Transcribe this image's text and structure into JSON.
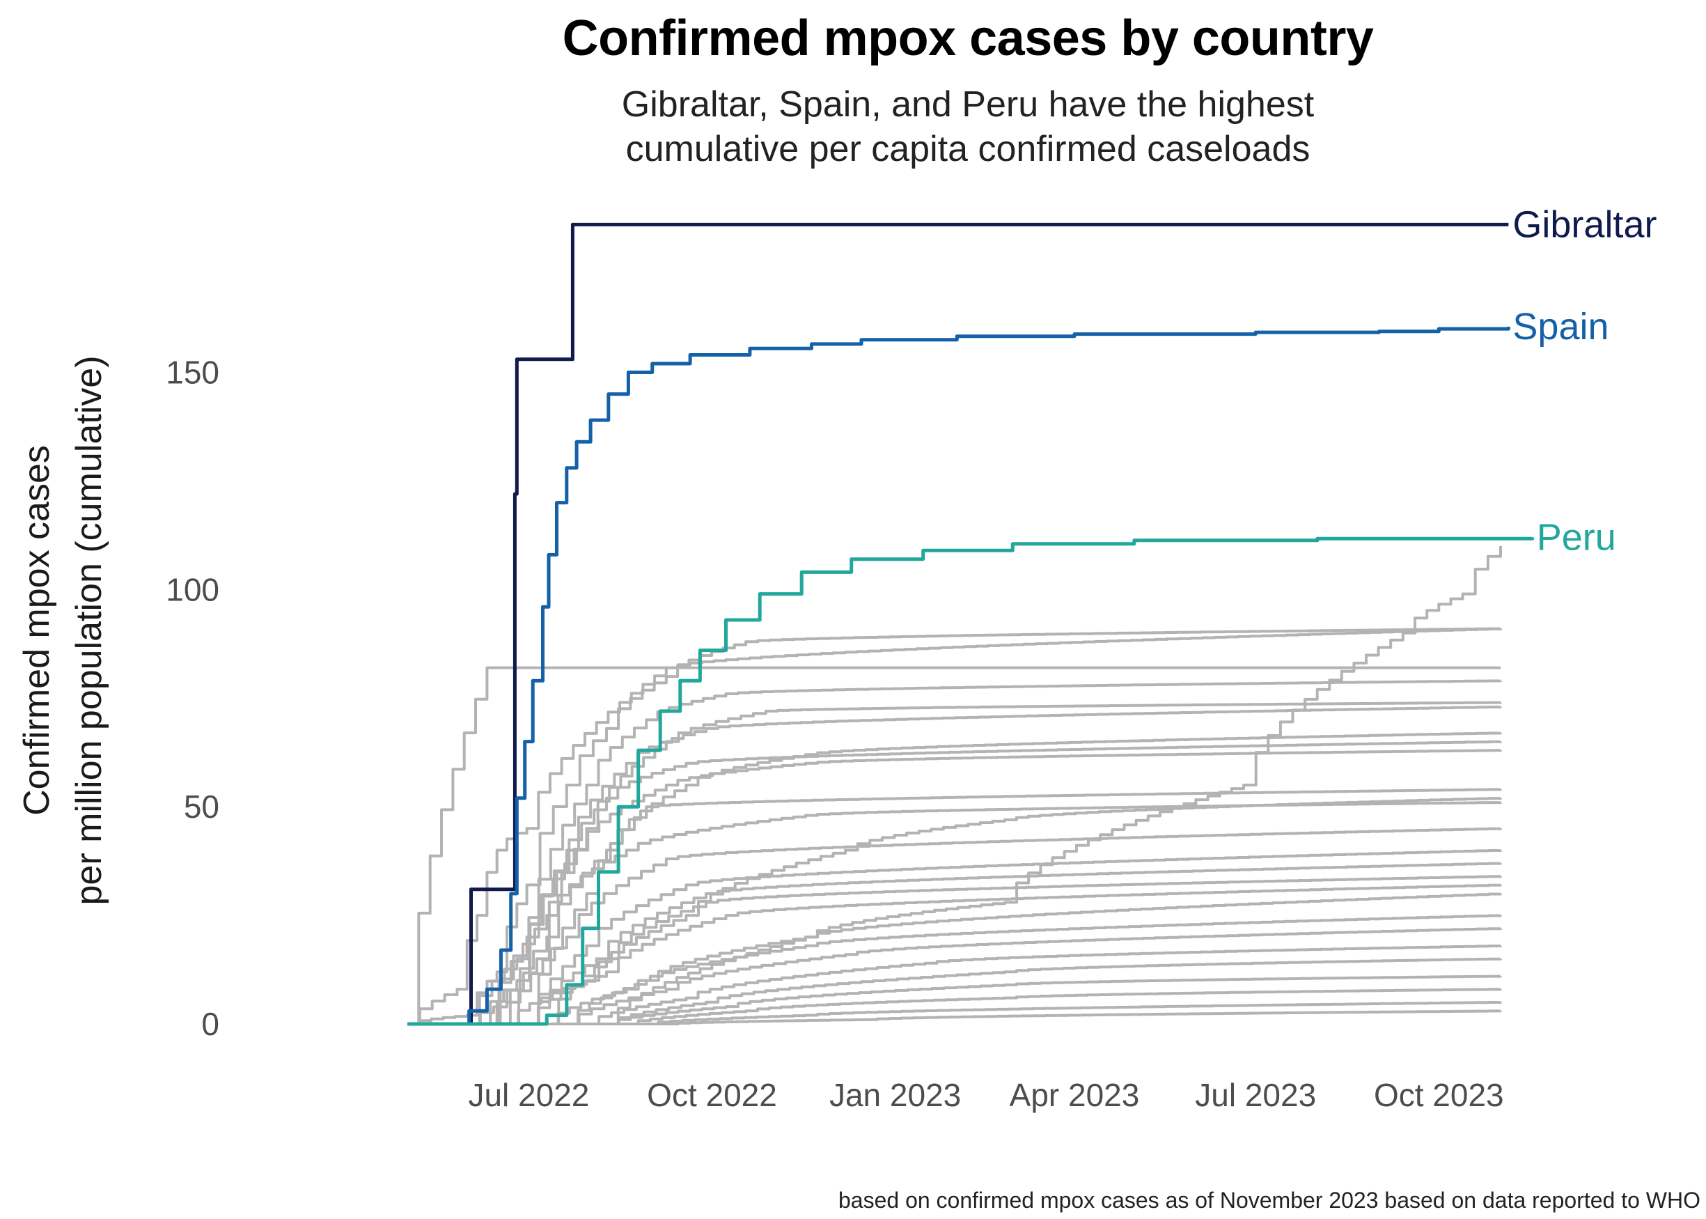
{
  "chart_data": {
    "type": "line",
    "title": "Confirmed mpox cases by country",
    "subtitle": [
      "Gibraltar, Spain, and Peru have the highest",
      "cumulative per capita confirmed caseloads"
    ],
    "xlabel": "",
    "ylabel": [
      "Confirmed mpox cases",
      "per million population (cumulative)"
    ],
    "xlim": [
      "2022-05-01",
      "2023-11-15"
    ],
    "ylim": [
      0,
      190
    ],
    "y_ticks": [
      0,
      50,
      100,
      150
    ],
    "x_ticks": [
      {
        "date": "2022-07-01",
        "label": "Jul 2022"
      },
      {
        "date": "2022-10-01",
        "label": "Oct 2022"
      },
      {
        "date": "2023-01-01",
        "label": "Jan 2023"
      },
      {
        "date": "2023-04-01",
        "label": "Apr 2023"
      },
      {
        "date": "2023-07-01",
        "label": "Jul 2023"
      },
      {
        "date": "2023-10-01",
        "label": "Oct 2023"
      }
    ],
    "grid": false,
    "legend": "direct labels at line ends",
    "highlight_series": [
      {
        "name": "Gibraltar",
        "color": "#0f1a4d",
        "points": [
          [
            "2022-05-31",
            0
          ],
          [
            "2022-06-02",
            0
          ],
          [
            "2022-06-02",
            31
          ],
          [
            "2022-06-24",
            31
          ],
          [
            "2022-06-24",
            122
          ],
          [
            "2022-06-25",
            122
          ],
          [
            "2022-06-25",
            153
          ],
          [
            "2022-07-23",
            153
          ],
          [
            "2022-07-23",
            184
          ],
          [
            "2023-11-05",
            184
          ]
        ]
      },
      {
        "name": "Spain",
        "color": "#1461a8",
        "points": [
          [
            "2022-05-01",
            0
          ],
          [
            "2022-05-20",
            0
          ],
          [
            "2022-06-01",
            3
          ],
          [
            "2022-06-10",
            8
          ],
          [
            "2022-06-17",
            17
          ],
          [
            "2022-06-22",
            30
          ],
          [
            "2022-06-25",
            52
          ],
          [
            "2022-06-29",
            65
          ],
          [
            "2022-07-03",
            79
          ],
          [
            "2022-07-08",
            96
          ],
          [
            "2022-07-11",
            108
          ],
          [
            "2022-07-15",
            120
          ],
          [
            "2022-07-20",
            128
          ],
          [
            "2022-07-25",
            134
          ],
          [
            "2022-08-01",
            139
          ],
          [
            "2022-08-10",
            145
          ],
          [
            "2022-08-20",
            150
          ],
          [
            "2022-09-01",
            152
          ],
          [
            "2022-09-20",
            154
          ],
          [
            "2022-10-20",
            155.5
          ],
          [
            "2022-11-20",
            156.5
          ],
          [
            "2022-12-15",
            157.5
          ],
          [
            "2023-02-01",
            158.3
          ],
          [
            "2023-04-01",
            158.8
          ],
          [
            "2023-07-01",
            159.2
          ],
          [
            "2023-09-01",
            159.4
          ],
          [
            "2023-10-01",
            160
          ],
          [
            "2023-11-05",
            160.5
          ]
        ]
      },
      {
        "name": "Peru",
        "color": "#22a79c",
        "points": [
          [
            "2022-05-01",
            0
          ],
          [
            "2022-07-01",
            0
          ],
          [
            "2022-07-10",
            2
          ],
          [
            "2022-07-20",
            9
          ],
          [
            "2022-07-28",
            22
          ],
          [
            "2022-08-05",
            35
          ],
          [
            "2022-08-15",
            50
          ],
          [
            "2022-08-25",
            63
          ],
          [
            "2022-09-05",
            72
          ],
          [
            "2022-09-15",
            79
          ],
          [
            "2022-09-25",
            86
          ],
          [
            "2022-10-08",
            93
          ],
          [
            "2022-10-25",
            99
          ],
          [
            "2022-11-15",
            104
          ],
          [
            "2022-12-10",
            107
          ],
          [
            "2023-01-15",
            109
          ],
          [
            "2023-03-01",
            110.5
          ],
          [
            "2023-05-01",
            111.3
          ],
          [
            "2023-08-01",
            111.7
          ],
          [
            "2023-11-17",
            112
          ]
        ]
      }
    ],
    "other_series_color": "#b3b3b3",
    "other_series": [
      {
        "values": [
          [
            0,
            0
          ],
          [
            25,
            8
          ],
          [
            35,
            25
          ],
          [
            45,
            40
          ],
          [
            60,
            45
          ],
          [
            130,
            82
          ],
          [
            549,
            91
          ]
        ]
      },
      {
        "values": [
          [
            0,
            0
          ],
          [
            30,
            2
          ],
          [
            45,
            12
          ],
          [
            60,
            32
          ],
          [
            80,
            55
          ],
          [
            100,
            68
          ],
          [
            130,
            80
          ],
          [
            170,
            88
          ],
          [
            549,
            91
          ]
        ]
      },
      {
        "values": [
          [
            0,
            0
          ],
          [
            40,
            0
          ],
          [
            60,
            20
          ],
          [
            90,
            55
          ],
          [
            120,
            70
          ],
          [
            160,
            76
          ],
          [
            549,
            79
          ]
        ]
      },
      {
        "values": [
          [
            0,
            0
          ],
          [
            40,
            0
          ],
          [
            55,
            10
          ],
          [
            80,
            40
          ],
          [
            110,
            60
          ],
          [
            150,
            68
          ],
          [
            549,
            73
          ]
        ]
      },
      {
        "values": [
          [
            0,
            0
          ],
          [
            35,
            0
          ],
          [
            55,
            10
          ],
          [
            75,
            35
          ],
          [
            100,
            52
          ],
          [
            140,
            60
          ],
          [
            549,
            65
          ]
        ]
      },
      {
        "values": [
          [
            0,
            0
          ],
          [
            30,
            0
          ],
          [
            55,
            15
          ],
          [
            85,
            40
          ],
          [
            130,
            55
          ],
          [
            200,
            60
          ],
          [
            549,
            63
          ]
        ]
      },
      {
        "values": [
          [
            0,
            0
          ],
          [
            60,
            0
          ],
          [
            90,
            30
          ],
          [
            120,
            50
          ],
          [
            549,
            54
          ]
        ]
      },
      {
        "values": [
          [
            0,
            0
          ],
          [
            40,
            0
          ],
          [
            70,
            25
          ],
          [
            110,
            40
          ],
          [
            200,
            48
          ],
          [
            549,
            51
          ]
        ]
      },
      {
        "values": [
          [
            0,
            0
          ],
          [
            50,
            0
          ],
          [
            80,
            20
          ],
          [
            130,
            38
          ],
          [
            549,
            45
          ]
        ]
      },
      {
        "values": [
          [
            0,
            0
          ],
          [
            60,
            0
          ],
          [
            90,
            18
          ],
          [
            140,
            32
          ],
          [
            549,
            40
          ]
        ]
      },
      {
        "values": [
          [
            0,
            0
          ],
          [
            60,
            0
          ],
          [
            95,
            15
          ],
          [
            150,
            30
          ],
          [
            549,
            37
          ]
        ]
      },
      {
        "values": [
          [
            0,
            0
          ],
          [
            70,
            0
          ],
          [
            100,
            15
          ],
          [
            150,
            28
          ],
          [
            549,
            34
          ]
        ]
      },
      {
        "values": [
          [
            0,
            0
          ],
          [
            60,
            0
          ],
          [
            100,
            12
          ],
          [
            160,
            25
          ],
          [
            549,
            32
          ]
        ]
      },
      {
        "values": [
          [
            0,
            0
          ],
          [
            80,
            0
          ],
          [
            120,
            10
          ],
          [
            200,
            20
          ],
          [
            549,
            30
          ]
        ]
      },
      {
        "values": [
          [
            0,
            0
          ],
          [
            70,
            0
          ],
          [
            110,
            8
          ],
          [
            200,
            18
          ],
          [
            549,
            25
          ]
        ]
      },
      {
        "values": [
          [
            0,
            0
          ],
          [
            80,
            0
          ],
          [
            130,
            8
          ],
          [
            220,
            16
          ],
          [
            549,
            22
          ]
        ]
      },
      {
        "values": [
          [
            0,
            0
          ],
          [
            90,
            0
          ],
          [
            140,
            6
          ],
          [
            260,
            14
          ],
          [
            549,
            18
          ]
        ]
      },
      {
        "values": [
          [
            0,
            0
          ],
          [
            100,
            0
          ],
          [
            150,
            5
          ],
          [
            300,
            12
          ],
          [
            549,
            15
          ]
        ]
      },
      {
        "values": [
          [
            0,
            0
          ],
          [
            100,
            0
          ],
          [
            160,
            4
          ],
          [
            300,
            9
          ],
          [
            549,
            11
          ]
        ]
      },
      {
        "values": [
          [
            0,
            0
          ],
          [
            110,
            0
          ],
          [
            170,
            3
          ],
          [
            300,
            6
          ],
          [
            549,
            8
          ]
        ]
      },
      {
        "values": [
          [
            0,
            0
          ],
          [
            120,
            0
          ],
          [
            200,
            2
          ],
          [
            549,
            5
          ]
        ]
      },
      {
        "values": [
          [
            0,
            0
          ],
          [
            130,
            0
          ],
          [
            230,
            1
          ],
          [
            549,
            3
          ]
        ]
      },
      {
        "values": [
          [
            0,
            0
          ],
          [
            100,
            0
          ],
          [
            200,
            20
          ],
          [
            300,
            28
          ],
          [
            420,
            55
          ],
          [
            500,
            90
          ],
          [
            530,
            99
          ],
          [
            549,
            110
          ]
        ]
      },
      {
        "values": [
          [
            0,
            0
          ],
          [
            30,
            0
          ],
          [
            50,
            5
          ],
          [
            70,
            20
          ],
          [
            100,
            40
          ],
          [
            140,
            55
          ],
          [
            200,
            62
          ],
          [
            549,
            67
          ]
        ]
      },
      {
        "values": [
          [
            0,
            0
          ],
          [
            45,
            0
          ],
          [
            65,
            15
          ],
          [
            90,
            45
          ],
          [
            130,
            65
          ],
          [
            180,
            72
          ],
          [
            549,
            74
          ]
        ]
      },
      {
        "values": [
          [
            0,
            0
          ],
          [
            40,
            82
          ],
          [
            549,
            82
          ]
        ]
      },
      {
        "values": [
          [
            0,
            0
          ],
          [
            50,
            0
          ],
          [
            90,
            10
          ],
          [
            140,
            25
          ],
          [
            220,
            40
          ],
          [
            300,
            47
          ],
          [
            549,
            52
          ]
        ]
      }
    ],
    "end_labels": [
      "Gibraltar",
      "Spain",
      "Peru"
    ]
  },
  "caption": "based on confirmed mpox cases as of November 2023 based on data reported to WHO"
}
